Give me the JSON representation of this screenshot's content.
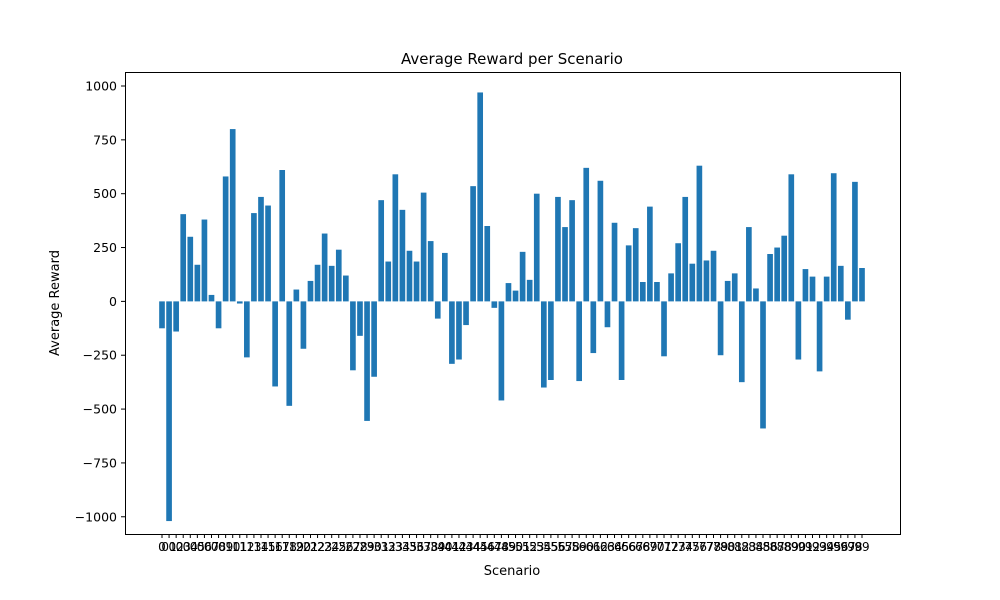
{
  "chart_data": {
    "type": "bar",
    "title": "Average Reward per Scenario",
    "xlabel": "Scenario",
    "ylabel": "Average Reward",
    "categories": [
      "0",
      "01",
      "02",
      "03",
      "04",
      "05",
      "06",
      "07",
      "08",
      "09",
      "10",
      "11",
      "12",
      "13",
      "14",
      "15",
      "16",
      "17",
      "18",
      "19",
      "20",
      "21",
      "22",
      "23",
      "24",
      "25",
      "26",
      "27",
      "28",
      "29",
      "30",
      "31",
      "32",
      "33",
      "34",
      "35",
      "36",
      "37",
      "38",
      "39",
      "40",
      "41",
      "42",
      "43",
      "44",
      "45",
      "46",
      "47",
      "48",
      "49",
      "50",
      "51",
      "52",
      "53",
      "54",
      "55",
      "56",
      "57",
      "58",
      "59",
      "60",
      "61",
      "62",
      "63",
      "64",
      "65",
      "66",
      "67",
      "68",
      "69",
      "70",
      "71",
      "72",
      "73",
      "74",
      "75",
      "76",
      "77",
      "78",
      "79",
      "80",
      "81",
      "82",
      "83",
      "84",
      "85",
      "86",
      "87",
      "88",
      "89",
      "90",
      "91",
      "92",
      "93",
      "94",
      "95",
      "96",
      "97",
      "98",
      "99"
    ],
    "values": [
      -125,
      -1020,
      -140,
      405,
      300,
      170,
      380,
      30,
      -125,
      580,
      800,
      -10,
      -260,
      410,
      485,
      445,
      -395,
      610,
      -485,
      55,
      -220,
      95,
      170,
      315,
      165,
      240,
      120,
      -320,
      -160,
      -555,
      -350,
      470,
      185,
      590,
      425,
      235,
      185,
      505,
      280,
      -80,
      225,
      -290,
      -270,
      -110,
      535,
      970,
      350,
      -30,
      -460,
      85,
      50,
      230,
      100,
      500,
      -400,
      -365,
      485,
      345,
      470,
      -370,
      620,
      -240,
      560,
      -120,
      365,
      -365,
      260,
      340,
      90,
      440,
      90,
      -255,
      130,
      270,
      485,
      175,
      630,
      190,
      235,
      -250,
      95,
      130,
      -375,
      345,
      60,
      -590,
      220,
      250,
      305,
      590,
      -270,
      150,
      115,
      -325,
      115,
      595,
      165,
      -85,
      555,
      155
    ],
    "ylim": [
      -1080,
      1065
    ],
    "yticks": [
      1000,
      750,
      500,
      250,
      0,
      -250,
      -500,
      -750,
      -1000
    ],
    "ytick_labels": [
      "1000",
      "750",
      "500",
      "250",
      "0",
      "−250",
      "−500",
      "−750",
      "−1000"
    ],
    "bar_color": "#1f77b4",
    "grid": false,
    "legend": "none"
  }
}
